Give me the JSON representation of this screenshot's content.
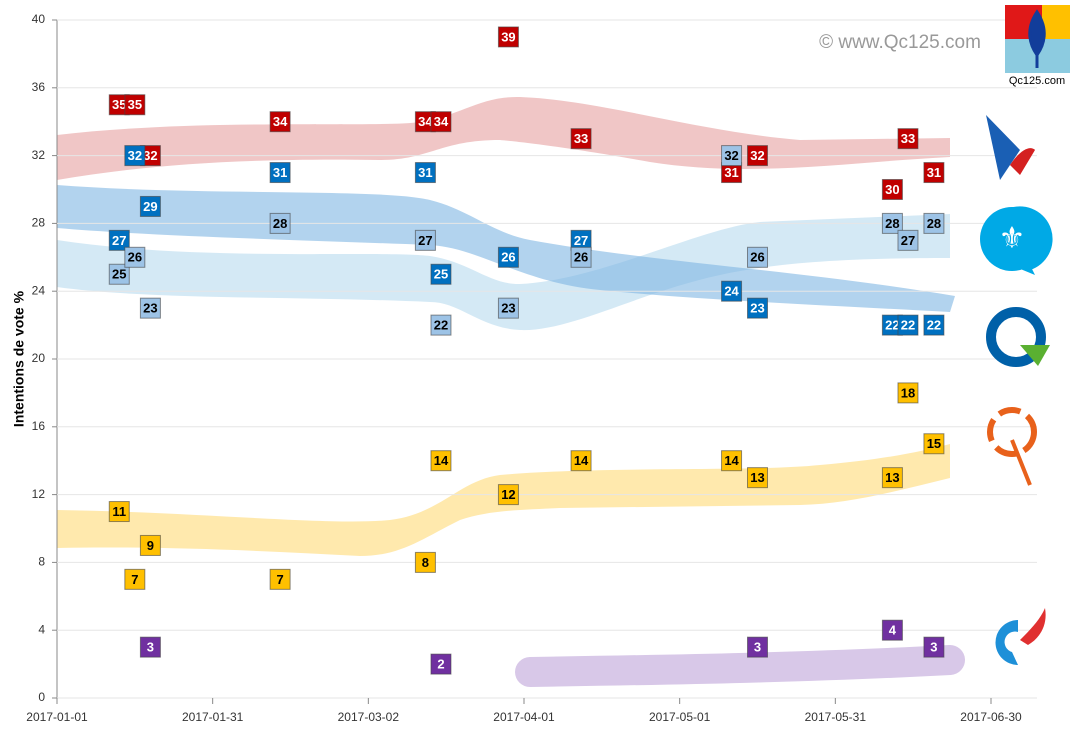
{
  "chart_data": {
    "type": "scatter",
    "y_label": "Intentions de vote %",
    "watermark": "© www.Qc125.com",
    "logo_text": "Qc125.com",
    "xlim": [
      "2017-01-01",
      "2017-06-30"
    ],
    "xticks": [
      "2017-01-01",
      "2017-01-31",
      "2017-03-02",
      "2017-04-01",
      "2017-05-01",
      "2017-05-31",
      "2017-06-30"
    ],
    "ylim": [
      0,
      40
    ],
    "yticks": [
      0,
      4,
      8,
      12,
      16,
      20,
      24,
      28,
      32,
      36,
      40
    ],
    "grid": true,
    "series": [
      {
        "color": "#c00000",
        "text_color": "#ffffff",
        "x": [
          "2017-01-13",
          "2017-01-16",
          "2017-01-19",
          "2017-02-13",
          "2017-03-13",
          "2017-03-16",
          "2017-03-29",
          "2017-04-12",
          "2017-05-11",
          "2017-05-16",
          "2017-06-11",
          "2017-06-14",
          "2017-06-19"
        ],
        "values": [
          35,
          35,
          32,
          34,
          34,
          34,
          39,
          33,
          31,
          32,
          30,
          33,
          31
        ]
      },
      {
        "color": "#0070c0",
        "text_color": "#ffffff",
        "x": [
          "2017-01-13",
          "2017-01-16",
          "2017-01-19",
          "2017-02-13",
          "2017-03-13",
          "2017-03-16",
          "2017-03-29",
          "2017-04-12",
          "2017-05-11",
          "2017-05-16",
          "2017-06-11",
          "2017-06-14",
          "2017-06-19"
        ],
        "values": [
          27,
          32,
          29,
          31,
          31,
          25,
          26,
          27,
          24,
          23,
          22,
          22,
          22
        ]
      },
      {
        "color": "#9dc3e6",
        "text_color": "#000000",
        "x": [
          "2017-01-13",
          "2017-01-16",
          "2017-01-19",
          "2017-02-13",
          "2017-03-13",
          "2017-03-16",
          "2017-03-29",
          "2017-04-12",
          "2017-05-11",
          "2017-05-16",
          "2017-06-11",
          "2017-06-14",
          "2017-06-19"
        ],
        "values": [
          25,
          26,
          23,
          28,
          27,
          22,
          23,
          26,
          32,
          26,
          28,
          27,
          28
        ]
      },
      {
        "color": "#ffc000",
        "text_color": "#000000",
        "x": [
          "2017-01-13",
          "2017-01-16",
          "2017-01-19",
          "2017-02-13",
          "2017-03-13",
          "2017-03-16",
          "2017-03-29",
          "2017-04-12",
          "2017-05-11",
          "2017-05-16",
          "2017-06-11",
          "2017-06-14",
          "2017-06-19"
        ],
        "values": [
          11,
          7,
          9,
          7,
          8,
          14,
          12,
          14,
          14,
          13,
          13,
          18,
          15
        ]
      },
      {
        "color": "#7030a0",
        "text_color": "#ffffff",
        "x": [
          "2017-01-19",
          "2017-03-16",
          "2017-05-16",
          "2017-06-11",
          "2017-06-19"
        ],
        "values": [
          3,
          2,
          3,
          4,
          3
        ]
      }
    ]
  }
}
